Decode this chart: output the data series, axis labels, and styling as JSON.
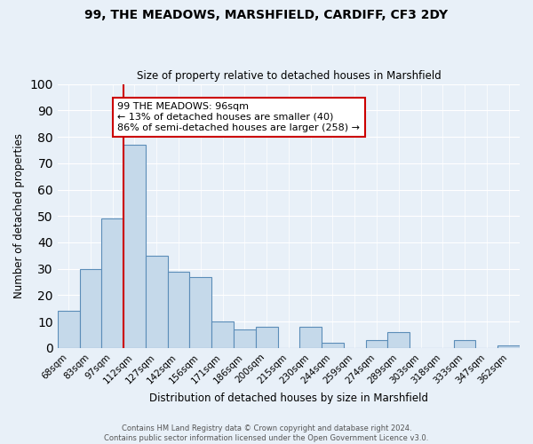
{
  "title": "99, THE MEADOWS, MARSHFIELD, CARDIFF, CF3 2DY",
  "subtitle": "Size of property relative to detached houses in Marshfield",
  "xlabel": "Distribution of detached houses by size in Marshfield",
  "ylabel": "Number of detached properties",
  "bin_labels": [
    "68sqm",
    "83sqm",
    "97sqm",
    "112sqm",
    "127sqm",
    "142sqm",
    "156sqm",
    "171sqm",
    "186sqm",
    "200sqm",
    "215sqm",
    "230sqm",
    "244sqm",
    "259sqm",
    "274sqm",
    "289sqm",
    "303sqm",
    "318sqm",
    "333sqm",
    "347sqm",
    "362sqm"
  ],
  "bar_values": [
    14,
    30,
    49,
    77,
    35,
    29,
    27,
    10,
    7,
    8,
    0,
    8,
    2,
    0,
    3,
    6,
    0,
    0,
    3,
    0,
    1
  ],
  "bar_color": "#c5d9ea",
  "bar_edgecolor": "#5b8db8",
  "background_color": "#e8f0f8",
  "vline_color": "#cc0000",
  "annotation_text": "99 THE MEADOWS: 96sqm\n← 13% of detached houses are smaller (40)\n86% of semi-detached houses are larger (258) →",
  "annotation_box_facecolor": "#ffffff",
  "annotation_box_edgecolor": "#cc0000",
  "ylim": [
    0,
    100
  ],
  "yticks": [
    0,
    10,
    20,
    30,
    40,
    50,
    60,
    70,
    80,
    90,
    100
  ],
  "footer_line1": "Contains HM Land Registry data © Crown copyright and database right 2024.",
  "footer_line2": "Contains public sector information licensed under the Open Government Licence v3.0."
}
